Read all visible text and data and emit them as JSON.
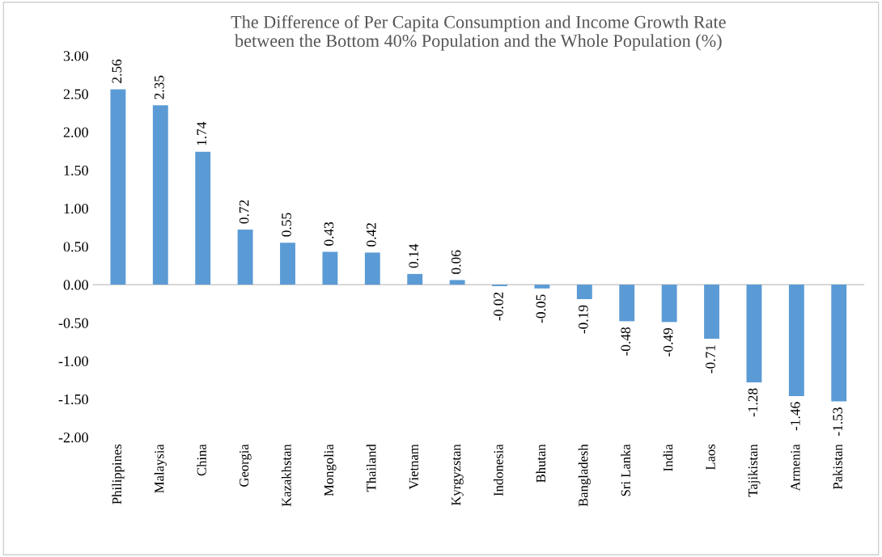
{
  "chart_data": {
    "type": "bar",
    "title": "The Difference of Per Capita Consumption and Income Growth Rate\nbetween the Bottom 40% Population and the Whole Population (%)",
    "categories": [
      "Philippines",
      "Malaysia",
      "China",
      "Georgia",
      "Kazakhstan",
      "Mongolia",
      "Thailand",
      "Vietnam",
      "Kyrgyzstan",
      "Indonesia",
      "Bhutan",
      "Bangladesh",
      "Sri Lanka",
      "India",
      "Laos",
      "Tajikistan",
      "Armenia",
      "Pakistan"
    ],
    "values": [
      2.56,
      2.35,
      1.74,
      0.72,
      0.55,
      0.43,
      0.42,
      0.14,
      0.06,
      -0.02,
      -0.05,
      -0.19,
      -0.48,
      -0.49,
      -0.71,
      -1.28,
      -1.46,
      -1.53
    ],
    "value_labels": [
      "2.56",
      "2.35",
      "1.74",
      "0.72",
      "0.55",
      "0.43",
      "0.42",
      "0.14",
      "0.06",
      "-0.02",
      "-0.05",
      "-0.19",
      "-0.48",
      "-0.49",
      "-0.71",
      "-1.28",
      "-1.46",
      "-1.53"
    ],
    "color": "#5b9bd5",
    "ylim": [
      -2,
      3
    ],
    "yticks": [
      {
        "value": -2,
        "label": "-2.00"
      },
      {
        "value": -1.5,
        "label": "-1.50"
      },
      {
        "value": -1,
        "label": "-1.00"
      },
      {
        "value": -0.5,
        "label": "-0.50"
      },
      {
        "value": 0,
        "label": "0.00"
      },
      {
        "value": 0.5,
        "label": "0.50"
      },
      {
        "value": 1,
        "label": "1.00"
      },
      {
        "value": 1.5,
        "label": "1.50"
      },
      {
        "value": 2,
        "label": "2.00"
      },
      {
        "value": 2.5,
        "label": "2.50"
      },
      {
        "value": 3,
        "label": "3.00"
      }
    ],
    "ref_lines": [
      {
        "axis": "y",
        "value": 0,
        "color": "#bfbfbf"
      }
    ],
    "grid": false,
    "legend": false
  }
}
